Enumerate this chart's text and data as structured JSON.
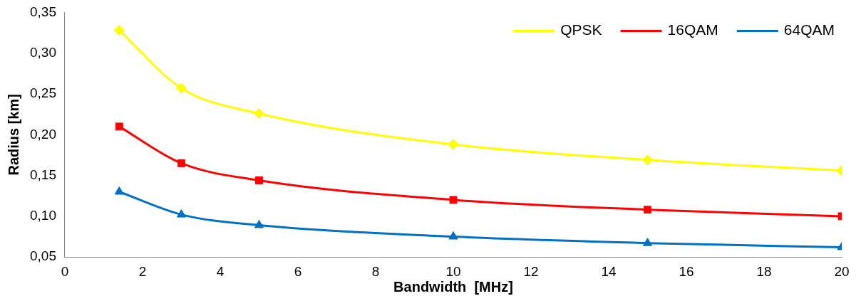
{
  "chart_data": {
    "type": "line",
    "xlabel": "Bandwidth  [MHz]",
    "ylabel": "Radius [km]",
    "xlim": [
      0,
      20
    ],
    "xticks": [
      0,
      2,
      4,
      6,
      8,
      10,
      12,
      14,
      16,
      18,
      20
    ],
    "ylim": [
      0.05,
      0.35
    ],
    "yticks": [
      {
        "value": 0.05,
        "label": "0,05"
      },
      {
        "value": 0.1,
        "label": "0,10"
      },
      {
        "value": 0.15,
        "label": "0,15"
      },
      {
        "value": 0.2,
        "label": "0,20"
      },
      {
        "value": 0.25,
        "label": "0,25"
      },
      {
        "value": 0.3,
        "label": "0,30"
      },
      {
        "value": 0.35,
        "label": "0,35"
      }
    ],
    "x": [
      1.4,
      3,
      5,
      10,
      15,
      20
    ],
    "legend": "top right",
    "grid": false,
    "series": [
      {
        "name": "QPSK",
        "color": "#ffff00",
        "marker": "diamond",
        "values": [
          0.328,
          0.257,
          0.226,
          0.188,
          0.169,
          0.156
        ]
      },
      {
        "name": "16QAM",
        "color": "#ff0000",
        "marker": "square",
        "values": [
          0.21,
          0.165,
          0.144,
          0.12,
          0.108,
          0.1
        ]
      },
      {
        "name": "64QAM",
        "color": "#0070c0",
        "marker": "triangle",
        "values": [
          0.13,
          0.102,
          0.089,
          0.075,
          0.067,
          0.062
        ]
      }
    ]
  }
}
